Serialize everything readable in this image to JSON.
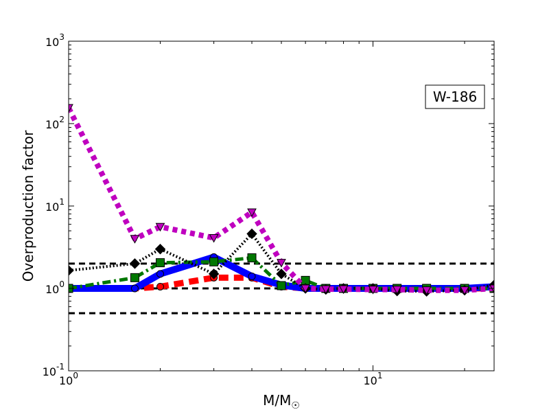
{
  "chart_data": {
    "type": "line",
    "title": "",
    "xlabel": "M/M",
    "xlabel_sub": "☉",
    "ylabel": "Overproduction factor",
    "xscale": "log",
    "yscale": "log",
    "xlim": [
      1,
      25
    ],
    "ylim": [
      0.1,
      1000
    ],
    "grid": false,
    "x_ticks": [
      {
        "value": 1,
        "base": "10",
        "exp": "0"
      },
      {
        "value": 10,
        "base": "10",
        "exp": "1"
      }
    ],
    "y_ticks": [
      {
        "value": 0.1,
        "base": "10",
        "exp": "-1"
      },
      {
        "value": 1,
        "base": "10",
        "exp": "0"
      },
      {
        "value": 10,
        "base": "10",
        "exp": "1"
      },
      {
        "value": 100,
        "base": "10",
        "exp": "2"
      },
      {
        "value": 1000,
        "base": "10",
        "exp": "3"
      }
    ],
    "annotation": {
      "text": "W-186",
      "position": "top-right"
    },
    "reference_lines": [
      {
        "y": 0.5,
        "color": "#000000",
        "style": "dashed"
      },
      {
        "y": 1.0,
        "color": "#000000",
        "style": "dashed"
      },
      {
        "y": 2.0,
        "color": "#000000",
        "style": "dashed"
      }
    ],
    "series": [
      {
        "color": "#ff0000",
        "style": "dashed-heavy",
        "marker": "circle",
        "x": [
          1,
          1.65,
          2,
          3,
          4,
          5,
          6,
          7,
          8,
          10,
          12,
          15,
          20,
          25
        ],
        "y": [
          1.0,
          1.0,
          1.05,
          1.35,
          1.35,
          1.05,
          1.0,
          1.0,
          1.0,
          1.0,
          1.0,
          1.0,
          1.0,
          1.0
        ]
      },
      {
        "color": "#0000ff",
        "style": "solid-heavy",
        "marker": "circle",
        "x": [
          1,
          1.65,
          2,
          3,
          4,
          5,
          6,
          7,
          8,
          10,
          12,
          15,
          20,
          25
        ],
        "y": [
          1.0,
          1.0,
          1.5,
          2.4,
          1.4,
          1.1,
          1.0,
          1.0,
          1.0,
          1.0,
          1.0,
          1.0,
          1.0,
          1.05
        ]
      },
      {
        "color": "#007700",
        "style": "dashdot",
        "marker": "square",
        "x": [
          1,
          1.65,
          2,
          3,
          4,
          5,
          6,
          7,
          8,
          10,
          12,
          15,
          20,
          25
        ],
        "y": [
          1.0,
          1.35,
          2.05,
          2.1,
          2.35,
          1.08,
          1.25,
          1.0,
          1.0,
          1.0,
          1.0,
          1.0,
          1.0,
          1.0
        ]
      },
      {
        "color": "#000000",
        "style": "dotted",
        "marker": "diamond",
        "x": [
          1,
          1.65,
          2,
          3,
          4,
          5,
          6,
          7,
          8,
          10,
          12,
          15,
          20,
          25
        ],
        "y": [
          1.65,
          2.0,
          3.0,
          1.5,
          4.6,
          1.5,
          1.0,
          0.97,
          1.0,
          1.0,
          0.93,
          0.92,
          0.95,
          1.1
        ]
      },
      {
        "color": "#bf00bf",
        "style": "dotted-heavy",
        "marker": "triangle-down",
        "x": [
          1,
          1.65,
          2,
          3,
          4,
          5,
          6,
          7,
          8,
          10,
          12,
          15,
          20,
          25
        ],
        "y": [
          155,
          4.0,
          5.6,
          4.1,
          8.4,
          2.05,
          1.0,
          0.98,
          0.98,
          0.97,
          0.97,
          0.95,
          0.95,
          1.0
        ]
      }
    ]
  }
}
